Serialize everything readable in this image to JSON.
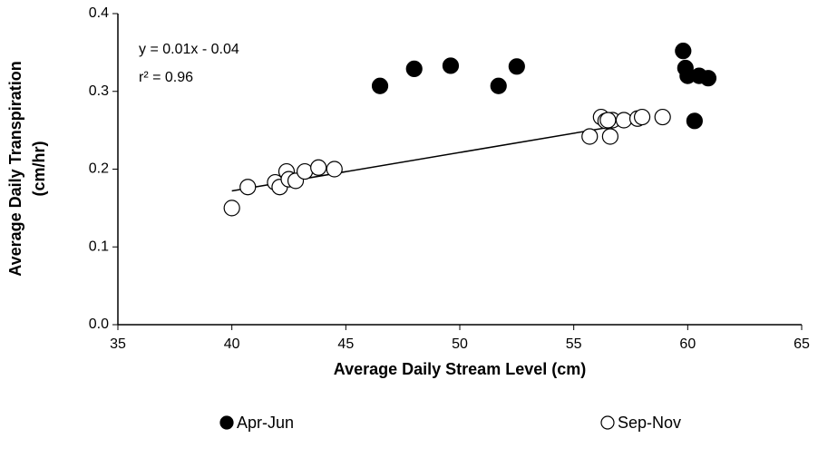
{
  "chart_data": {
    "type": "scatter",
    "xlabel": "Average Daily Stream Level (cm)",
    "ylabel": [
      "Average Daily Transpiration",
      "(cm/hr)"
    ],
    "annotations": [
      "y = 0.01x - 0.04",
      "r² = 0.96"
    ],
    "xlim": [
      35,
      65
    ],
    "xticks": [
      35,
      40,
      45,
      50,
      55,
      60,
      65
    ],
    "ylim": [
      0,
      0.4
    ],
    "yticks": [
      {
        "value": 0,
        "label": "0.0"
      },
      0.1,
      0.2,
      0.3,
      0.4
    ],
    "grid": false,
    "legend": "bottom",
    "series": [
      {
        "name": "Apr-Jun",
        "color": "#000000",
        "filled": true,
        "x": [
          46.5,
          48.0,
          49.6,
          51.7,
          52.5,
          59.8,
          59.9,
          60.0,
          60.5,
          60.9,
          60.3
        ],
        "values": [
          0.307,
          0.329,
          0.333,
          0.307,
          0.332,
          0.352,
          0.33,
          0.32,
          0.32,
          0.317,
          0.262
        ]
      },
      {
        "name": "Sep-Nov",
        "color": "#000000",
        "filled": false,
        "x": [
          40.0,
          40.7,
          41.9,
          42.1,
          42.4,
          42.5,
          42.8,
          43.2,
          43.8,
          44.5,
          55.7,
          56.2,
          56.4,
          56.6,
          56.7,
          57.2,
          57.8,
          58.0,
          58.9,
          56.5
        ],
        "values": [
          0.15,
          0.177,
          0.183,
          0.177,
          0.197,
          0.187,
          0.185,
          0.197,
          0.202,
          0.2,
          0.242,
          0.267,
          0.262,
          0.242,
          0.263,
          0.263,
          0.265,
          0.267,
          0.267,
          0.263
        ]
      }
    ],
    "trendline": {
      "x": [
        40,
        58.2
      ],
      "values": [
        0.172,
        0.262
      ]
    }
  }
}
